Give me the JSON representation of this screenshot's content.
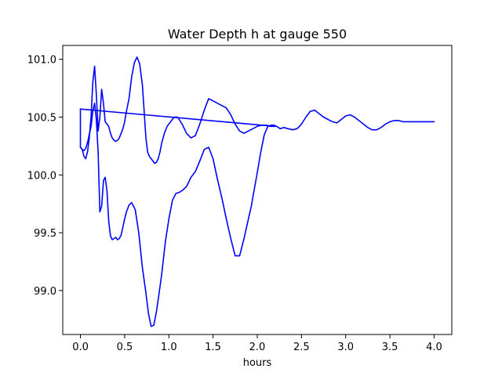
{
  "chart_data": {
    "type": "line",
    "title": "Water Depth h at gauge 550",
    "xlabel": "hours",
    "ylabel": "",
    "xlim": [
      -0.2,
      4.2
    ],
    "ylim": [
      98.62,
      101.12
    ],
    "xticks": [
      0.0,
      0.5,
      1.0,
      1.5,
      2.0,
      2.5,
      3.0,
      3.5,
      4.0
    ],
    "xtick_labels": [
      "0.0",
      "0.5",
      "1.0",
      "1.5",
      "2.0",
      "2.5",
      "3.0",
      "3.5",
      "4.0"
    ],
    "yticks": [
      99.0,
      99.5,
      100.0,
      100.5,
      101.0
    ],
    "ytick_labels": [
      "99.0",
      "99.5",
      "100.0",
      "100.5",
      "101.0"
    ],
    "grid": false,
    "legend": "none",
    "color": "#0000ff",
    "series": [
      {
        "x": [
          0.0,
          0.0,
          0.02,
          0.04,
          0.06,
          0.08,
          0.1,
          0.12,
          0.14,
          0.16,
          0.18,
          0.2,
          0.22,
          0.24,
          0.26,
          0.28,
          0.3,
          0.32,
          0.34,
          0.36,
          0.38,
          0.4,
          0.42,
          0.44,
          0.46,
          0.48,
          0.5,
          0.52,
          0.55,
          0.58,
          0.62,
          0.66,
          0.7,
          0.74,
          0.77,
          0.8,
          0.83,
          0.86,
          0.89,
          0.92,
          0.96,
          1.0,
          1.04,
          1.08,
          1.12,
          1.16,
          1.2,
          1.25,
          1.3,
          1.35,
          1.4,
          1.45,
          1.5,
          1.55,
          1.6,
          1.65,
          1.7,
          1.75,
          1.8,
          1.85,
          1.9,
          1.93,
          1.96,
          2.0,
          2.04,
          2.08,
          2.12,
          2.16,
          2.19,
          2.22,
          2.26,
          2.3,
          2.35,
          2.4,
          2.45,
          2.5,
          2.55,
          2.6,
          2.65,
          2.7,
          2.75,
          2.8,
          2.85,
          2.9,
          2.95,
          3.0,
          3.05,
          3.1,
          3.15,
          3.2,
          3.25,
          3.3,
          3.35,
          3.4,
          3.45,
          3.5,
          3.55,
          3.6,
          3.65,
          3.7,
          3.75,
          3.8,
          3.85,
          3.9,
          3.95,
          4.0
        ],
        "y": [
          100.57,
          100.24,
          100.22,
          100.21,
          100.23,
          100.28,
          100.35,
          100.42,
          100.55,
          100.62,
          100.48,
          100.2,
          99.68,
          99.73,
          99.95,
          99.98,
          99.86,
          99.6,
          99.47,
          99.44,
          99.45,
          99.46,
          99.44,
          99.45,
          99.48,
          99.55,
          99.62,
          99.68,
          99.74,
          99.76,
          99.7,
          99.5,
          99.2,
          98.98,
          98.8,
          98.69,
          98.7,
          98.82,
          98.98,
          99.15,
          99.42,
          99.62,
          99.78,
          99.84,
          99.85,
          99.87,
          99.9,
          99.98,
          100.03,
          100.12,
          100.22,
          100.24,
          100.14,
          99.96,
          99.8,
          99.62,
          99.45,
          99.3,
          99.3,
          99.45,
          99.62,
          99.72,
          99.85,
          100.02,
          100.2,
          100.35,
          100.42,
          100.43,
          100.43,
          100.42,
          100.4,
          100.41,
          100.4,
          100.39,
          100.4,
          100.44,
          100.5,
          100.55,
          100.56,
          100.53,
          100.5,
          100.48,
          100.46,
          100.45,
          100.48,
          100.51,
          100.52,
          100.5,
          100.47,
          100.44,
          100.41,
          100.39,
          100.39,
          100.41,
          100.44,
          100.46,
          100.47,
          100.47,
          100.46,
          100.46,
          100.46,
          100.46,
          100.46,
          100.46,
          100.46,
          100.46
        ]
      },
      {
        "x": [
          0.0,
          0.02,
          0.04,
          0.06,
          0.08,
          0.1,
          0.12,
          0.14,
          0.16,
          0.18,
          0.2,
          0.22,
          0.24,
          0.26,
          0.28,
          0.3,
          0.32,
          0.34,
          0.36,
          0.38,
          0.4,
          0.42,
          0.44,
          0.46,
          0.48,
          0.5,
          0.52,
          0.55,
          0.58,
          0.61,
          0.64,
          0.67,
          0.7,
          0.72,
          0.74,
          0.76,
          0.78,
          0.8,
          0.82,
          0.84,
          0.86,
          0.88,
          0.9,
          0.92,
          0.95,
          0.98,
          1.02,
          1.06,
          1.1,
          1.15,
          1.2,
          1.25,
          1.3,
          1.35,
          1.4,
          1.45,
          1.5,
          1.55,
          1.6,
          1.65,
          1.7,
          1.75,
          1.8,
          1.85,
          1.9,
          1.95,
          2.0,
          2.05,
          2.1,
          2.15,
          2.2
        ],
        "y": [
          100.24,
          100.22,
          100.16,
          100.14,
          100.2,
          100.32,
          100.5,
          100.8,
          100.94,
          100.7,
          100.38,
          100.5,
          100.74,
          100.62,
          100.46,
          100.44,
          100.42,
          100.36,
          100.32,
          100.3,
          100.29,
          100.3,
          100.32,
          100.36,
          100.4,
          100.46,
          100.55,
          100.66,
          100.85,
          100.97,
          101.02,
          100.96,
          100.78,
          100.56,
          100.32,
          100.2,
          100.16,
          100.14,
          100.12,
          100.1,
          100.11,
          100.14,
          100.2,
          100.28,
          100.36,
          100.42,
          100.46,
          100.5,
          100.5,
          100.44,
          100.36,
          100.32,
          100.34,
          100.44,
          100.56,
          100.66,
          100.64,
          100.62,
          100.6,
          100.58,
          100.52,
          100.44,
          100.38,
          100.36,
          100.38,
          100.4,
          100.42,
          100.43,
          100.43,
          100.42,
          100.42
        ]
      },
      {
        "x": [
          0.0,
          2.2
        ],
        "y": [
          100.57,
          100.42
        ]
      }
    ]
  }
}
